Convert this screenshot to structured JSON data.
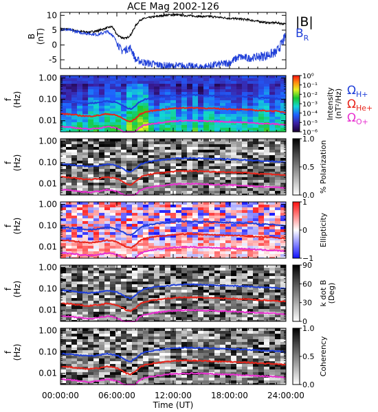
{
  "chart_data": {
    "title": "ACE Mag 2002-126",
    "xlabel": "Time (UT)",
    "x_ticks": [
      "00:00:00",
      "06:00:00",
      "12:00:00",
      "18:00:00",
      "24:00:00"
    ],
    "xlim_hours": [
      0,
      24
    ],
    "panels": [
      {
        "type": "line",
        "ylabel": [
          "B",
          "(nT)"
        ],
        "ylim": [
          -8,
          11
        ],
        "y_ticks": [
          -5,
          0,
          5,
          10
        ],
        "series": [
          {
            "name": "|B|",
            "color": "#000000",
            "x": [
              0,
              1,
              2,
              3,
              4,
              5,
              5.5,
              6,
              6.5,
              7,
              7.5,
              8,
              8.5,
              9,
              10,
              11,
              12,
              13,
              14,
              15,
              16,
              17,
              18,
              19,
              20,
              21,
              22,
              23,
              24
            ],
            "y": [
              5.5,
              5.2,
              4.6,
              4.3,
              4.8,
              5.8,
              6.2,
              3.5,
              2.5,
              2.2,
              3.5,
              6.5,
              8.5,
              9.0,
              9.5,
              10.0,
              10.2,
              10.0,
              9.8,
              9.6,
              9.6,
              9.3,
              9.0,
              8.8,
              8.5,
              8.0,
              7.5,
              7.5,
              7.0
            ]
          },
          {
            "name": "B",
            "subscript": "R",
            "color": "#1f3fd8",
            "x": [
              0,
              1,
              2,
              3,
              4,
              5,
              5.5,
              6,
              6.5,
              7,
              7.5,
              8,
              8.5,
              9,
              10,
              11,
              12,
              13,
              14,
              15,
              16,
              17,
              18,
              19,
              20,
              21,
              22,
              23,
              24
            ],
            "y": [
              5.3,
              5.0,
              4.3,
              3.8,
              3.5,
              4.5,
              3.5,
              1.0,
              -2.0,
              -1.5,
              -1.0,
              -5.0,
              -5.5,
              -6.0,
              -6.5,
              -7.0,
              -7.2,
              -7.0,
              -7.3,
              -7.5,
              -7.0,
              -6.5,
              -6.0,
              -4.0,
              -4.5,
              -4.0,
              -3.5,
              -2.5,
              3.0
            ]
          }
        ]
      },
      {
        "type": "heatmap",
        "map": "rainbow",
        "colorbar": {
          "label": [
            "Intensity",
            "(nT²/Hz)"
          ],
          "ticks": [
            "10⁰",
            "10⁻¹",
            "10⁻²",
            "10⁻³",
            "10⁻⁴",
            "10⁻⁵",
            "10⁻⁶"
          ]
        }
      },
      {
        "type": "heatmap",
        "map": "gray",
        "colorbar": {
          "label": [
            "% Polarization"
          ],
          "ticks": [
            "1.0",
            "0.5",
            "0.0"
          ]
        }
      },
      {
        "type": "heatmap",
        "map": "bwr",
        "colorbar": {
          "label": [
            "Ellipticity"
          ],
          "ticks": [
            "1",
            "0",
            "−1"
          ]
        }
      },
      {
        "type": "heatmap",
        "map": "gray",
        "colorbar": {
          "label": [
            "k dot B",
            "(Deg)"
          ],
          "ticks": [
            "90",
            "60",
            "30",
            "0"
          ]
        }
      },
      {
        "type": "heatmap",
        "map": "gray",
        "colorbar": {
          "label": [
            "Coherency"
          ],
          "ticks": [
            "1.0",
            "0.5",
            "0.0"
          ]
        }
      }
    ],
    "spectrogram_axis": {
      "ylabel": [
        "f",
        "(Hz)"
      ],
      "scale": "log",
      "ylim": [
        0.003,
        1.3
      ],
      "y_ticks": [
        {
          "value": 1.0,
          "label": "1.00"
        },
        {
          "value": 0.1,
          "label": "0.10"
        },
        {
          "value": 0.01,
          "label": "0.01"
        }
      ]
    },
    "gyrofrequency_lines": {
      "x": [
        0,
        1,
        2,
        3,
        4,
        5,
        6,
        7,
        7.5,
        8,
        8.5,
        9,
        10,
        11,
        12,
        13,
        14,
        15,
        16,
        17,
        18,
        19,
        20,
        21,
        22,
        23,
        24
      ],
      "series": [
        {
          "name": "Ω",
          "subscript": "H+",
          "color": "#1f3fd8",
          "y": [
            0.085,
            0.08,
            0.07,
            0.065,
            0.07,
            0.085,
            0.07,
            0.04,
            0.035,
            0.05,
            0.08,
            0.1,
            0.12,
            0.135,
            0.15,
            0.16,
            0.16,
            0.155,
            0.15,
            0.145,
            0.14,
            0.135,
            0.13,
            0.12,
            0.115,
            0.11,
            0.1
          ]
        },
        {
          "name": "Ω",
          "subscript": "He+",
          "color": "#e8241a",
          "y": [
            0.021,
            0.02,
            0.0175,
            0.016,
            0.0175,
            0.021,
            0.0175,
            0.01,
            0.009,
            0.0125,
            0.02,
            0.025,
            0.03,
            0.034,
            0.0375,
            0.04,
            0.04,
            0.039,
            0.0375,
            0.036,
            0.035,
            0.034,
            0.0325,
            0.03,
            0.029,
            0.0275,
            0.025
          ]
        },
        {
          "name": "Ω",
          "subscript": "O+",
          "color": "#e830d0",
          "y": [
            0.0053,
            0.005,
            0.0044,
            0.004,
            0.0044,
            0.0053,
            0.0044,
            0.0025,
            0.0022,
            0.0031,
            0.005,
            0.0063,
            0.0075,
            0.0085,
            0.0094,
            0.01,
            0.01,
            0.0097,
            0.0094,
            0.009,
            0.0088,
            0.0084,
            0.0081,
            0.0075,
            0.0072,
            0.0069,
            0.0063
          ]
        }
      ]
    }
  }
}
